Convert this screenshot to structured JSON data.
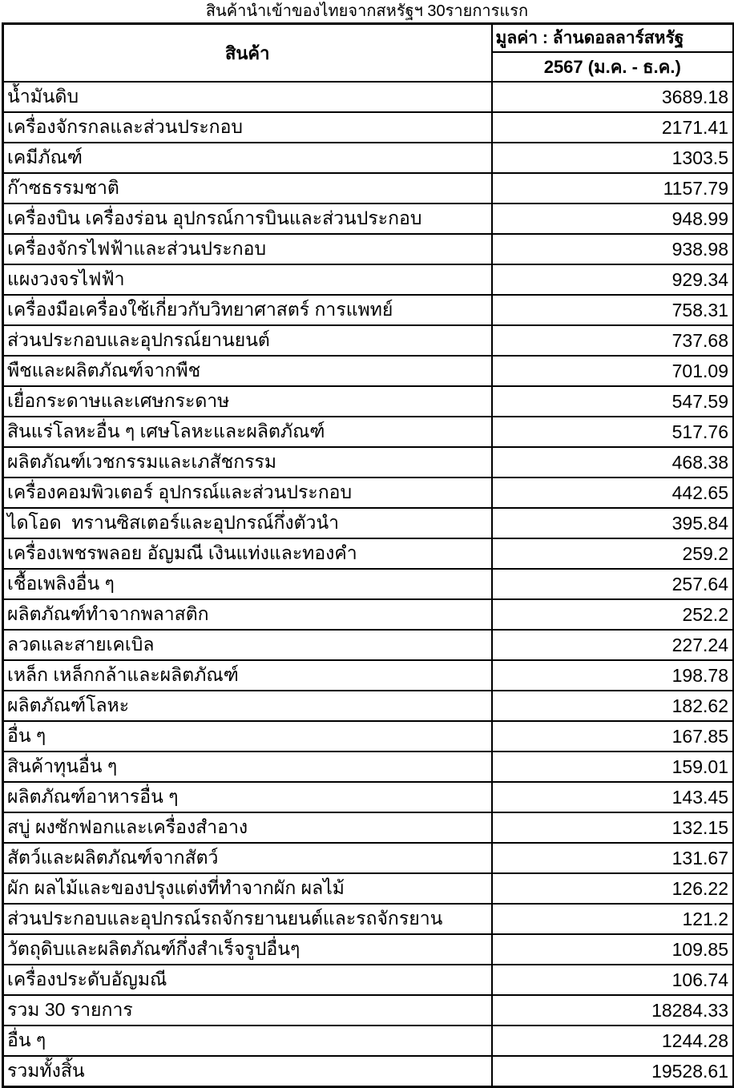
{
  "page": {
    "title": "สินค้านำเข้าของไทยจากสหรัฐฯ 30รายการแรก"
  },
  "table": {
    "col_product_header": "สินค้า",
    "col_value_header": "มูลค่า : ล้านดอลลาร์สหรัฐ",
    "col_value_period": "2567 (ม.ค. - ธ.ค.)",
    "items": [
      {
        "name": "น้ำมันดิบ",
        "value": "3689.18"
      },
      {
        "name": "เครื่องจักรกลและส่วนประกอบ",
        "value": "2171.41"
      },
      {
        "name": "เคมีภัณฑ์",
        "value": "1303.5"
      },
      {
        "name": "ก๊าซธรรมชาติ",
        "value": "1157.79"
      },
      {
        "name": "เครื่องบิน เครื่องร่อน อุปกรณ์การบินและส่วนประกอบ",
        "value": "948.99"
      },
      {
        "name": "เครื่องจักรไฟฟ้าและส่วนประกอบ",
        "value": "938.98"
      },
      {
        "name": "แผงวงจรไฟฟ้า",
        "value": "929.34"
      },
      {
        "name": "เครื่องมือเครื่องใช้เกี่ยวกับวิทยาศาสตร์ การแพทย์",
        "value": "758.31"
      },
      {
        "name": "ส่วนประกอบและอุปกรณ์ยานยนต์",
        "value": "737.68"
      },
      {
        "name": "พืชและผลิตภัณฑ์จากพืช",
        "value": "701.09"
      },
      {
        "name": "เยื่อกระดาษและเศษกระดาษ",
        "value": "547.59"
      },
      {
        "name": "สินแร่โลหะอื่น ๆ เศษโลหะและผลิตภัณฑ์",
        "value": "517.76"
      },
      {
        "name": "ผลิตภัณฑ์เวชกรรมและเภสัชกรรม",
        "value": "468.38"
      },
      {
        "name": "เครื่องคอมพิวเตอร์ อุปกรณ์และส่วนประกอบ",
        "value": "442.65"
      },
      {
        "name": "ไดโอด  ทรานซิสเตอร์และอุปกรณ์กึ่งตัวนำ",
        "value": "395.84"
      },
      {
        "name": "เครื่องเพชรพลอย อัญมณี เงินแท่งและทองคำ",
        "value": "259.2"
      },
      {
        "name": "เชื้อเพลิงอื่น ๆ",
        "value": "257.64"
      },
      {
        "name": "ผลิตภัณฑ์ทำจากพลาสติก",
        "value": "252.2"
      },
      {
        "name": "ลวดและสายเคเบิล",
        "value": "227.24"
      },
      {
        "name": "เหล็ก เหล็กกล้าและผลิตภัณฑ์",
        "value": "198.78"
      },
      {
        "name": "ผลิตภัณฑ์โลหะ",
        "value": "182.62"
      },
      {
        "name": "อื่น ๆ",
        "value": "167.85"
      },
      {
        "name": "สินค้าทุนอื่น ๆ",
        "value": "159.01"
      },
      {
        "name": "ผลิตภัณฑ์อาหารอื่น ๆ",
        "value": "143.45"
      },
      {
        "name": "สบู่ ผงซักฟอกและเครื่องสำอาง",
        "value": "132.15"
      },
      {
        "name": "สัตว์และผลิตภัณฑ์จากสัตว์",
        "value": "131.67"
      },
      {
        "name": "ผัก ผลไม้และของปรุงแต่งที่ทำจากผัก ผลไม้",
        "value": "126.22"
      },
      {
        "name": "ส่วนประกอบและอุปกรณ์รถจักรยานยนต์และรถจักรยาน",
        "value": "121.2"
      },
      {
        "name": "วัตถุดิบและผลิตภัณฑ์กึ่งสำเร็จรูปอื่นๆ",
        "value": "109.85"
      },
      {
        "name": "เครื่องประดับอัญมณี",
        "value": "106.74"
      }
    ],
    "summary": [
      {
        "name": "รวม 30 รายการ",
        "value": "18284.33"
      },
      {
        "name": "อื่น ๆ",
        "value": "1244.28"
      },
      {
        "name": "รวมทั้งสิ้น",
        "value": "19528.61"
      }
    ]
  },
  "colors": {
    "text": "#000000",
    "background": "#ffffff",
    "border": "#000000"
  }
}
